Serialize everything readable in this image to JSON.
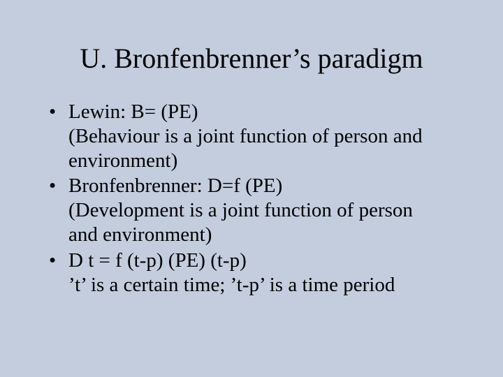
{
  "title": "U. Bronfenbrenner’s paradigm",
  "background_color": "#c3cdde",
  "text_color": "#000000",
  "font_family": "Times New Roman",
  "title_fontsize": 40,
  "body_fontsize": 29,
  "bullets": [
    {
      "lines": [
        "Lewin: B= (PE)",
        "(Behaviour is a joint function of person and",
        "environment)"
      ]
    },
    {
      "lines": [
        "Bronfenbrenner: D=f (PE)",
        "(Development is a joint function of person",
        "and environment)"
      ]
    },
    {
      "lines": [
        "D t  =  f  (t-p)  (PE)  (t-p)",
        "’t’ is a certain time;  ’t-p’ is a time period"
      ]
    }
  ]
}
